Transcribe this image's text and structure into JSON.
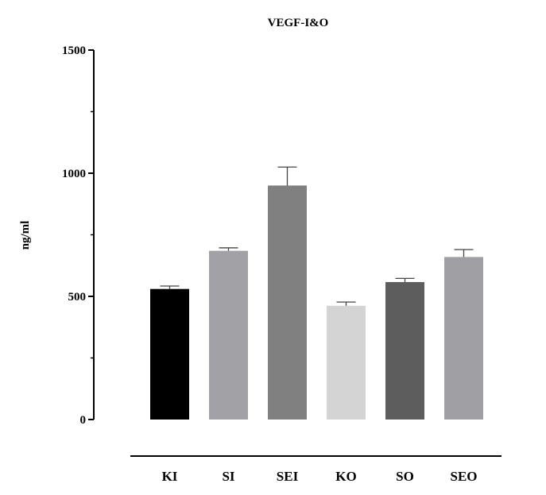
{
  "chart_data": {
    "type": "bar",
    "title": "VEGF-I&O",
    "xlabel": "",
    "ylabel": "ng/ml",
    "ylim": [
      0,
      1500
    ],
    "yticks_major": [
      0,
      500,
      1000,
      1500
    ],
    "yticks_minor": [
      250,
      750,
      1250
    ],
    "categories": [
      "KI",
      "SI",
      "SEI",
      "KO",
      "SO",
      "SEO"
    ],
    "values": [
      530,
      685,
      950,
      462,
      558,
      660
    ],
    "errors": [
      12,
      12,
      75,
      15,
      15,
      30
    ],
    "colors": [
      "#000000",
      "#a2a2a6",
      "#808080",
      "#d4d4d4",
      "#5d5d5d",
      "#a0a0a4"
    ],
    "error_bar_color": "#444444",
    "grid": false,
    "legend": "none"
  }
}
